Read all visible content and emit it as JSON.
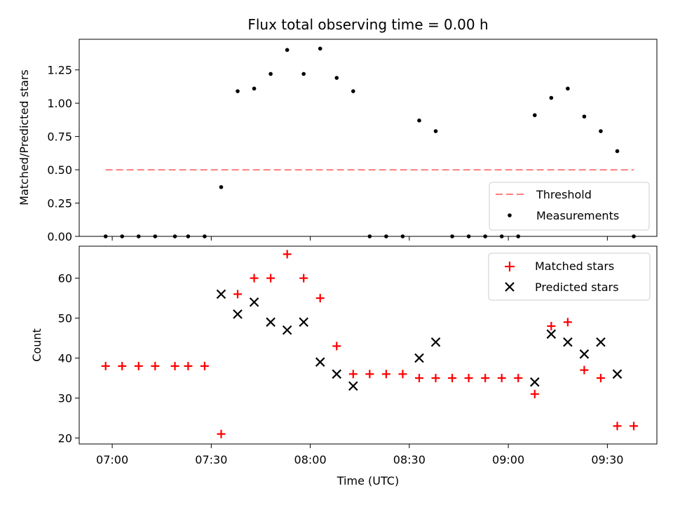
{
  "chart_data": [
    {
      "type": "scatter",
      "title": "Flux total observing time = 0.00 h",
      "xlabel": "",
      "ylabel": "Matched/Predicted stars",
      "ylim": [
        0,
        1.48
      ],
      "yticks": [
        "0.00",
        "0.25",
        "0.50",
        "0.75",
        "1.00",
        "1.25"
      ],
      "ytick_values": [
        0,
        0.25,
        0.5,
        0.75,
        1.0,
        1.25
      ],
      "legend_position": "lower-right",
      "threshold": {
        "name": "Threshold",
        "value": 0.5,
        "x_start": "06:58",
        "x_end": "09:38",
        "color": "#ff7f7f"
      },
      "series": [
        {
          "name": "Measurements",
          "color": "#000000",
          "points": [
            [
              "06:58",
              0
            ],
            [
              "07:03",
              0
            ],
            [
              "07:08",
              0
            ],
            [
              "07:13",
              0
            ],
            [
              "07:19",
              0
            ],
            [
              "07:23",
              0
            ],
            [
              "07:28",
              0
            ],
            [
              "07:33",
              0.37
            ],
            [
              "07:38",
              1.09
            ],
            [
              "07:43",
              1.11
            ],
            [
              "07:48",
              1.22
            ],
            [
              "07:53",
              1.4
            ],
            [
              "07:58",
              1.22
            ],
            [
              "08:03",
              1.41
            ],
            [
              "08:08",
              1.19
            ],
            [
              "08:13",
              1.09
            ],
            [
              "08:18",
              0
            ],
            [
              "08:23",
              0
            ],
            [
              "08:28",
              0
            ],
            [
              "08:33",
              0.87
            ],
            [
              "08:38",
              0.79
            ],
            [
              "08:43",
              0
            ],
            [
              "08:48",
              0
            ],
            [
              "08:53",
              0
            ],
            [
              "08:58",
              0
            ],
            [
              "09:03",
              0
            ],
            [
              "09:08",
              0.91
            ],
            [
              "09:13",
              1.04
            ],
            [
              "09:18",
              1.11
            ],
            [
              "09:23",
              0.9
            ],
            [
              "09:28",
              0.79
            ],
            [
              "09:33",
              0.64
            ],
            [
              "09:38",
              0
            ]
          ]
        }
      ]
    },
    {
      "type": "scatter",
      "title": "",
      "xlabel": "Time (UTC)",
      "ylabel": "Count",
      "ylim": [
        18.5,
        68
      ],
      "yticks": [
        "20",
        "30",
        "40",
        "50",
        "60"
      ],
      "ytick_values": [
        20,
        30,
        40,
        50,
        60
      ],
      "xlim": [
        "06:50",
        "09:45"
      ],
      "xticks": [
        "07:00",
        "07:30",
        "08:00",
        "08:30",
        "09:00",
        "09:30"
      ],
      "legend_position": "upper-right",
      "series": [
        {
          "name": "Matched stars",
          "color": "#ff0000",
          "marker": "plus",
          "points": [
            [
              "06:58",
              38
            ],
            [
              "07:03",
              38
            ],
            [
              "07:08",
              38
            ],
            [
              "07:13",
              38
            ],
            [
              "07:19",
              38
            ],
            [
              "07:23",
              38
            ],
            [
              "07:28",
              38
            ],
            [
              "07:33",
              21
            ],
            [
              "07:38",
              56
            ],
            [
              "07:43",
              60
            ],
            [
              "07:48",
              60
            ],
            [
              "07:53",
              66
            ],
            [
              "07:58",
              60
            ],
            [
              "08:03",
              55
            ],
            [
              "08:08",
              43
            ],
            [
              "08:13",
              36
            ],
            [
              "08:18",
              36
            ],
            [
              "08:23",
              36
            ],
            [
              "08:28",
              36
            ],
            [
              "08:33",
              35
            ],
            [
              "08:38",
              35
            ],
            [
              "08:43",
              35
            ],
            [
              "08:48",
              35
            ],
            [
              "08:53",
              35
            ],
            [
              "08:58",
              35
            ],
            [
              "09:03",
              35
            ],
            [
              "09:08",
              31
            ],
            [
              "09:13",
              48
            ],
            [
              "09:18",
              49
            ],
            [
              "09:23",
              37
            ],
            [
              "09:28",
              35
            ],
            [
              "09:33",
              23
            ],
            [
              "09:38",
              23
            ]
          ]
        },
        {
          "name": "Predicted stars",
          "color": "#000000",
          "marker": "x",
          "points": [
            [
              "07:33",
              56
            ],
            [
              "07:38",
              51
            ],
            [
              "07:43",
              54
            ],
            [
              "07:48",
              49
            ],
            [
              "07:53",
              47
            ],
            [
              "07:58",
              49
            ],
            [
              "08:03",
              39
            ],
            [
              "08:08",
              36
            ],
            [
              "08:13",
              33
            ],
            [
              "08:33",
              40
            ],
            [
              "08:38",
              44
            ],
            [
              "09:08",
              34
            ],
            [
              "09:13",
              46
            ],
            [
              "09:18",
              44
            ],
            [
              "09:23",
              41
            ],
            [
              "09:28",
              44
            ],
            [
              "09:33",
              36
            ]
          ]
        }
      ]
    }
  ]
}
